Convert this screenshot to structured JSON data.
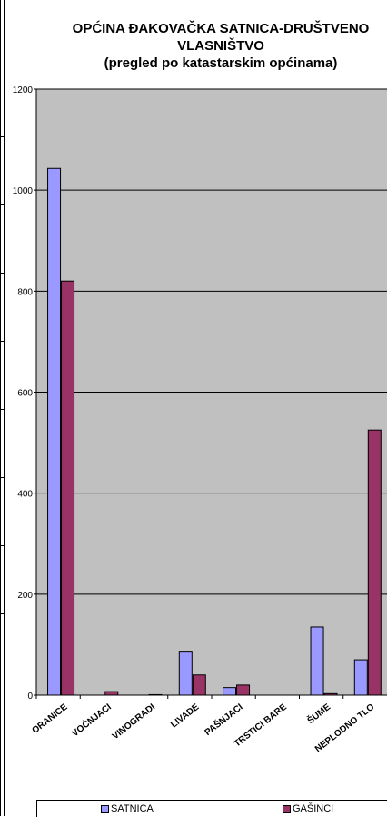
{
  "chart_data": {
    "type": "bar",
    "title_lines": [
      "OPĆINA ĐAKOVAČKA SATNICA-DRUŠTVENO",
      "VLASNIŠTVO",
      "(pregled po katastarskim općinama)"
    ],
    "categories": [
      "ORANICE",
      "VOĆNJACI",
      "VINOGRADI",
      "LIVADE",
      "PAŠNJACI",
      "TRSTICI BARE",
      "ŠUME",
      "NEPLODNO TLO"
    ],
    "series": [
      {
        "name": "SATNICA",
        "values": [
          1043,
          0,
          0,
          87,
          15,
          0,
          135,
          70
        ],
        "color": "#9999ff"
      },
      {
        "name": "GAŠINCI",
        "values": [
          820,
          7,
          1,
          40,
          20,
          0,
          3,
          525
        ],
        "color": "#993366"
      }
    ],
    "ylim": [
      0,
      1200
    ],
    "yticks": [
      0,
      200,
      400,
      600,
      800,
      1000,
      1200
    ],
    "grid": true,
    "plot_background": "#c0c0c0",
    "legend": "bottom"
  }
}
